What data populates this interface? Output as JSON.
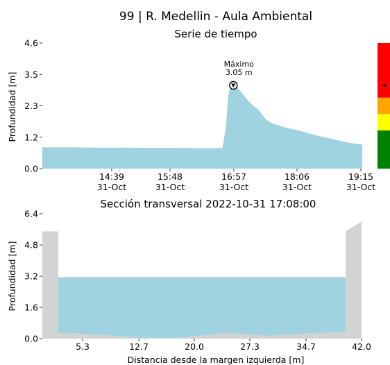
{
  "header": {
    "title": "99 | R. Medellin - Aula Ambiental"
  },
  "colors": {
    "fill": "#9fd3e0",
    "ground": "#d3d3d3",
    "red": "#ff0000",
    "orange": "#ffa500",
    "yellow": "#ffff00",
    "green": "#008000"
  },
  "chart_data": [
    {
      "type": "area",
      "title": "Serie de tiempo",
      "ylabel": "Profundidad [m]",
      "xlabel": "",
      "ylim": [
        0,
        4.6
      ],
      "yticks": [
        "0.0",
        "1.2",
        "2.3",
        "3.5",
        "4.6"
      ],
      "xticks": [
        {
          "time": "14:39",
          "date": "31-Oct"
        },
        {
          "time": "15:48",
          "date": "31-Oct"
        },
        {
          "time": "16:57",
          "date": "31-Oct"
        },
        {
          "time": "18:06",
          "date": "31-Oct"
        },
        {
          "time": "19:15",
          "date": "31-Oct"
        }
      ],
      "x_minutes": [
        810,
        840,
        870,
        900,
        930,
        960,
        990,
        1010,
        1014,
        1016,
        1018,
        1022,
        1026,
        1032,
        1038,
        1044,
        1050,
        1058,
        1066,
        1080,
        1094,
        1110,
        1130,
        1150,
        1165
      ],
      "values": [
        0.78,
        0.78,
        0.77,
        0.77,
        0.76,
        0.76,
        0.75,
        0.75,
        1.6,
        2.6,
        2.95,
        3.05,
        2.98,
        2.75,
        2.5,
        2.3,
        2.15,
        1.8,
        1.65,
        1.5,
        1.4,
        1.25,
        1.1,
        0.95,
        0.88
      ],
      "annotation": {
        "label": "Máximo",
        "value": "3.05 m",
        "x_minute": 1022,
        "y": 3.05
      },
      "level_bar": {
        "segments": [
          "green",
          "yellow",
          "orange",
          "red"
        ],
        "bounds": [
          0,
          1.4,
          2.0,
          2.6,
          4.6
        ],
        "marker": 3.05
      }
    },
    {
      "type": "area",
      "title": "Sección transversal 2022-10-31 17:08:00",
      "ylabel": "Profundidad [m]",
      "xlabel": "Distancia desde la margen izquierda [m]",
      "xlim": [
        0,
        42.0
      ],
      "ylim": [
        0,
        6.4
      ],
      "xticks": [
        "5.3",
        "12.7",
        "20.0",
        "27.3",
        "34.7",
        "42.0"
      ],
      "yticks": [
        "0.0",
        "1.6",
        "3.2",
        "4.8",
        "6.4"
      ],
      "water_level": 3.15,
      "bank_left": {
        "x": [
          0,
          2.1
        ],
        "height": 5.5
      },
      "bank_right": {
        "x": [
          39.9,
          42.0
        ],
        "height_low": 5.5,
        "height_high": 6.0
      },
      "bed": {
        "x": [
          2.1,
          8,
          13,
          18,
          24,
          30,
          36,
          39.9
        ],
        "y": [
          0.3,
          0.2,
          0.05,
          0.05,
          0.3,
          0.15,
          0.28,
          0.35
        ]
      }
    }
  ]
}
